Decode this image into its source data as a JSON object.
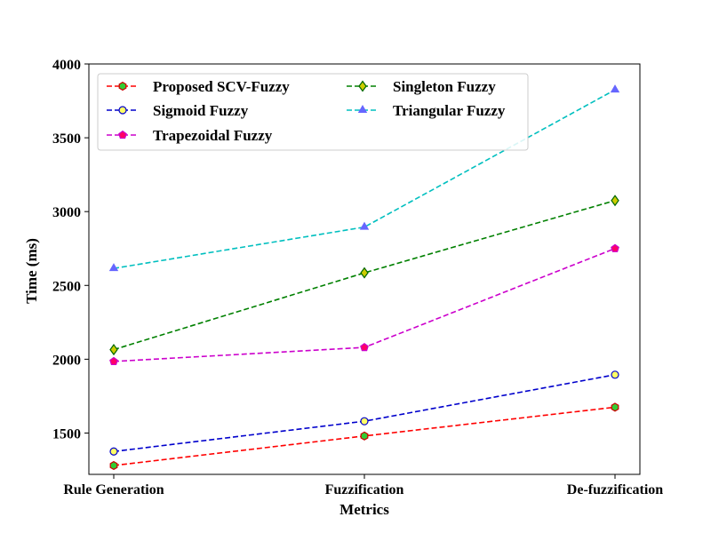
{
  "chart_data": {
    "type": "line",
    "title": "",
    "xlabel": "Metrics",
    "ylabel": "Time (ms)",
    "categories": [
      "Rule Generation",
      "Fuzzification",
      "De-fuzzification"
    ],
    "ylim": [
      1220,
      4000
    ],
    "yticks": [
      1500,
      2000,
      2500,
      3000,
      3500,
      4000
    ],
    "grid": false,
    "legend_position": "top-left",
    "legend_columns": 2,
    "series": [
      {
        "name": "Proposed SCV-Fuzzy",
        "values": [
          1280,
          1480,
          1675
        ],
        "line_color": "#ff0000",
        "marker": "hexagon",
        "marker_fill": "#33cc33",
        "marker_edge": "#cc0000"
      },
      {
        "name": "Sigmoid Fuzzy",
        "values": [
          1375,
          1580,
          1895
        ],
        "line_color": "#0000cc",
        "marker": "circle",
        "marker_fill": "#ffff66",
        "marker_edge": "#0000cc"
      },
      {
        "name": "Trapezoidal Fuzzy",
        "values": [
          1985,
          2080,
          2750
        ],
        "line_color": "#cc00cc",
        "marker": "pentagon",
        "marker_fill": "#ff0066",
        "marker_edge": "#cc00cc"
      },
      {
        "name": "Singleton Fuzzy",
        "values": [
          2065,
          2585,
          3075
        ],
        "line_color": "#008000",
        "marker": "diamond",
        "marker_fill": "#cccc00",
        "marker_edge": "#006600"
      },
      {
        "name": "Triangular Fuzzy",
        "values": [
          2615,
          2895,
          3825
        ],
        "line_color": "#00bfbf",
        "marker": "triangle",
        "marker_fill": "#6666ff",
        "marker_edge": "#6666ff"
      }
    ]
  }
}
